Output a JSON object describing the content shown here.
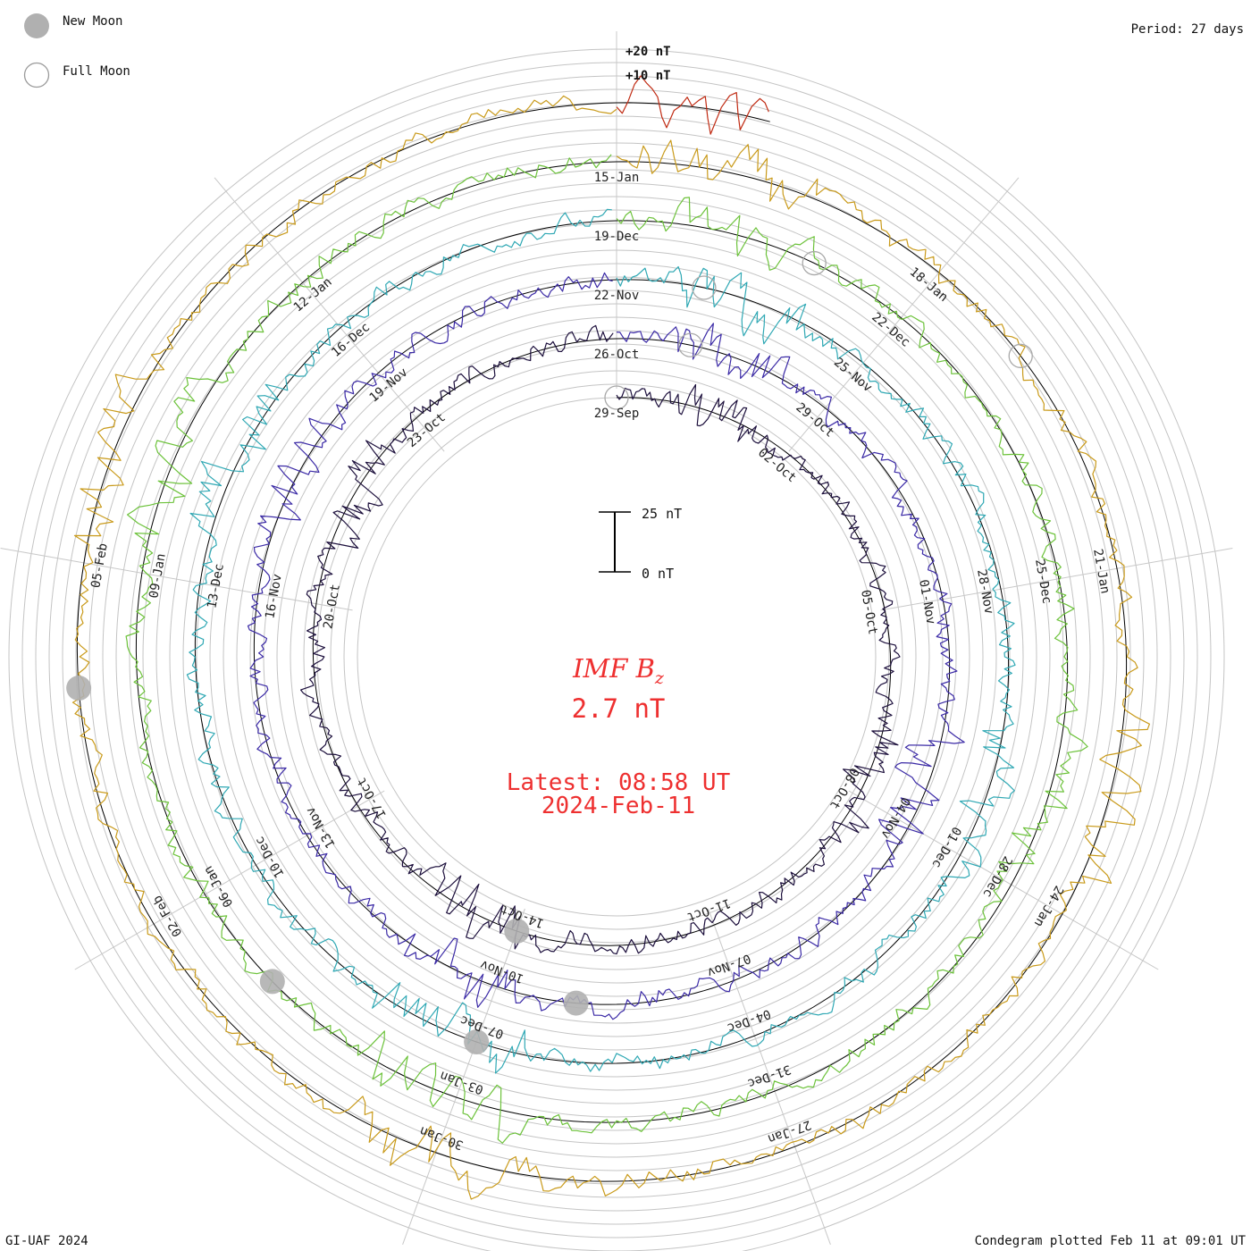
{
  "legend": {
    "new_moon": "New Moon",
    "full_moon": "Full Moon"
  },
  "period": "Period: 27 days",
  "scale_labels": {
    "plus20": "+20 nT",
    "plus10": "+10 nT"
  },
  "scale_bar": {
    "top": "25 nT",
    "bottom": "0 nT"
  },
  "center": {
    "title": "IMF B",
    "subscript": "z",
    "value": "2.7 nT",
    "latest_line1": "Latest: 08:58 UT",
    "latest_line2": "2024-Feb-11"
  },
  "footer": {
    "left": "GI-UAF 2024",
    "right": "Condegram plotted Feb 11 at 09:01 UT"
  },
  "colors": {
    "text_red": "#ee3030",
    "grid": "#bbbbbb",
    "moon": "#b0b0b0"
  },
  "chart_data": {
    "type": "line",
    "title": "IMF Bz",
    "layout": "condegram spiral, 27-day period, 6 rotations",
    "units": "nT",
    "baseline_nT": 0,
    "scale_marks_nT": [
      10,
      20
    ],
    "latest_value_nT": 2.7,
    "rotations": [
      {
        "index": 0,
        "color": "#1c0f3c",
        "date_labels": [
          "29-Sep",
          "02-Oct",
          "05-Oct",
          "08-Oct",
          "11-Oct",
          "14-Oct",
          "17-Oct",
          "20-Oct",
          "23-Oct"
        ]
      },
      {
        "index": 1,
        "color": "#3b2aa6",
        "date_labels": [
          "26-Oct",
          "29-Oct",
          "01-Nov",
          "04-Nov",
          "07-Nov",
          "10-Nov",
          "13-Nov",
          "16-Nov",
          "19-Nov"
        ]
      },
      {
        "index": 2,
        "color": "#2fa8b4",
        "date_labels": [
          "22-Nov",
          "25-Nov",
          "28-Nov",
          "01-Dec",
          "04-Dec",
          "07-Dec",
          "10-Dec",
          "13-Dec",
          "16-Dec"
        ]
      },
      {
        "index": 3,
        "color": "#6cc23a",
        "date_labels": [
          "19-Dec",
          "22-Dec",
          "25-Dec",
          "28-Dec",
          "31-Dec",
          "03-Jan",
          "06-Jan",
          "09-Jan",
          "12-Jan"
        ]
      },
      {
        "index": 4,
        "color": "#c99a1a",
        "date_labels": [
          "15-Jan",
          "18-Jan",
          "21-Jan",
          "24-Jan",
          "27-Jan",
          "30-Jan",
          "02-Feb",
          "05-Feb"
        ]
      },
      {
        "index": 5,
        "color": "#c02a12",
        "date_labels": []
      }
    ],
    "new_moon_days": [
      15,
      41,
      69,
      98,
      128
    ],
    "full_moon_days": [
      0,
      28,
      55,
      83,
      112
    ]
  }
}
